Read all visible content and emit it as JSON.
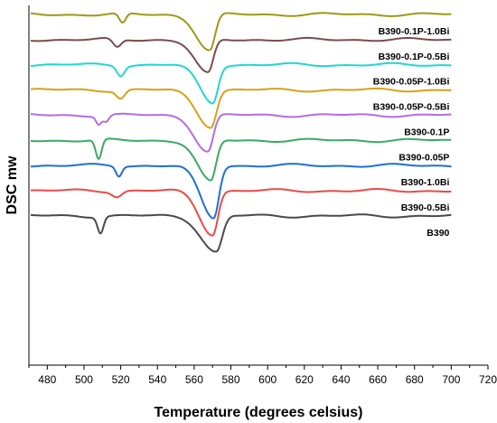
{
  "chart_data": {
    "type": "line",
    "title": "",
    "xlabel": "Temperature (degrees celsius)",
    "ylabel": "DSC mw",
    "xlim": [
      470,
      720
    ],
    "xticks": [
      480,
      500,
      520,
      540,
      560,
      580,
      600,
      620,
      640,
      660,
      680,
      700,
      720
    ],
    "x_range": [
      471,
      700
    ],
    "grid": false,
    "legend": "labels placed beside each curve",
    "series": [
      {
        "name": "B390-0.1P-1.0Bi",
        "color": "#9b9b14",
        "offset": 1.0,
        "features": [
          {
            "t": 521,
            "d": -0.55,
            "w": 1.8
          },
          {
            "t": 568.5,
            "d": -2.0,
            "w": 3.2,
            "asym": true
          }
        ]
      },
      {
        "name": "B390-0.1P-0.5Bi",
        "color": "#7b4d4d",
        "offset": 0.93,
        "features": [
          {
            "t": 518,
            "d": -0.45,
            "w": 2.2
          },
          {
            "t": 567.5,
            "d": -1.9,
            "w": 3.2,
            "asym": true
          }
        ]
      },
      {
        "name": "B390-0.05P-1.0Bi",
        "color": "#1fd6d6",
        "offset": 0.86,
        "features": [
          {
            "t": 520,
            "d": -0.55,
            "w": 2.0
          },
          {
            "t": 570,
            "d": -2.1,
            "w": 3.2,
            "asym": true
          }
        ]
      },
      {
        "name": "B390-0.05P-0.5Bi",
        "color": "#d6a21a",
        "offset": 0.79,
        "features": [
          {
            "t": 520,
            "d": -0.45,
            "w": 2.2
          },
          {
            "t": 569,
            "d": -2.0,
            "w": 3.4,
            "asym": true
          }
        ]
      },
      {
        "name": "B390-0.1P",
        "color": "#b06ee6",
        "offset": 0.72,
        "features": [
          {
            "t": 508,
            "d": -0.45,
            "w": 1.4
          },
          {
            "t": 512,
            "d": -0.35,
            "w": 1.6
          },
          {
            "t": 567.5,
            "d": -2.0,
            "w": 3.2,
            "asym": true
          }
        ]
      },
      {
        "name": "B390-0.05P",
        "color": "#3aaa63",
        "offset": 0.65,
        "features": [
          {
            "t": 508,
            "d": -1.1,
            "w": 1.6
          },
          {
            "t": 569,
            "d": -2.3,
            "w": 3.2,
            "asym": true
          }
        ]
      },
      {
        "name": "B390-1.0Bi",
        "color": "#1f6fd6",
        "offset": 0.58,
        "features": [
          {
            "t": 519,
            "d": -0.55,
            "w": 1.6
          },
          {
            "t": 570.5,
            "d": -2.9,
            "w": 3.2,
            "asym": true
          }
        ]
      },
      {
        "name": "B390-0.5Bi",
        "color": "#ec4a4a",
        "offset": 0.51,
        "features": [
          {
            "t": 518,
            "d": -0.3,
            "w": 2.5
          },
          {
            "t": 570,
            "d": -2.4,
            "w": 3.2,
            "asym": true
          }
        ]
      },
      {
        "name": "B390",
        "color": "#4a4a4a",
        "offset": 0.44,
        "features": [
          {
            "t": 509,
            "d": -0.9,
            "w": 1.6
          },
          {
            "t": 572,
            "d": -2.0,
            "w": 3.6,
            "asym": true
          }
        ]
      }
    ]
  }
}
